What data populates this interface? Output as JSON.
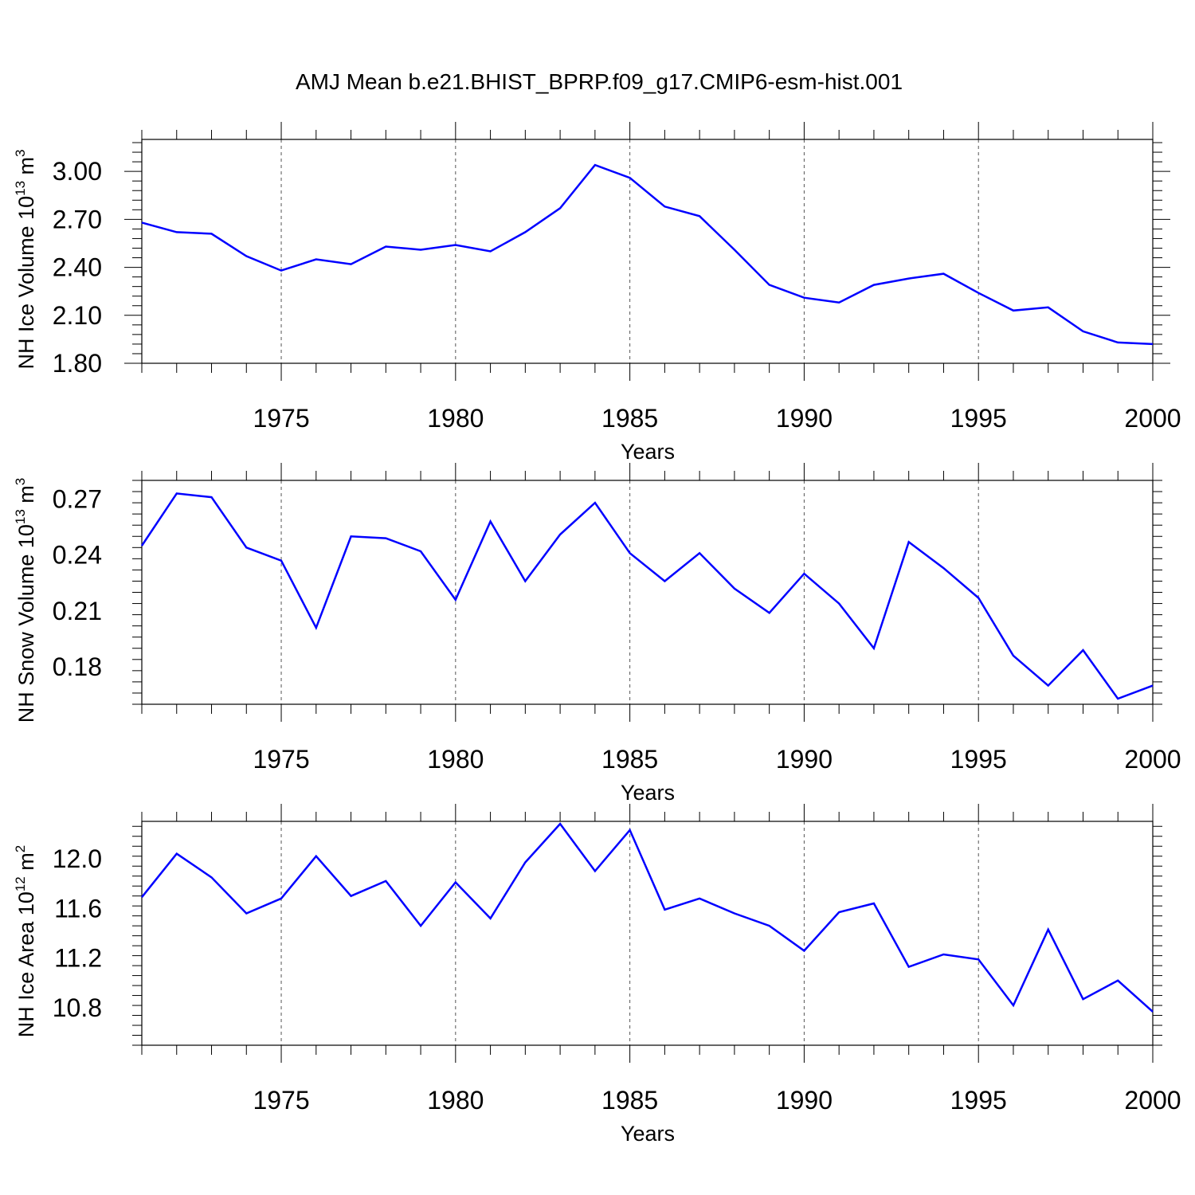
{
  "title": "AMJ Mean b.e21.BHIST_BPRP.f09_g17.CMIP6-esm-hist.001",
  "line_color": "#0000ff",
  "chart_data": [
    {
      "type": "line",
      "ylabel": {
        "base": "NH Ice Volume 10",
        "sup": "13",
        "unit": " m",
        "unit_sup": "3"
      },
      "xlabel": "Years",
      "xlim": [
        1971,
        2000
      ],
      "ylim": [
        1.8,
        3.2
      ],
      "x_ticks": [
        "1975",
        "1980",
        "1985",
        "1990",
        "1995",
        "2000"
      ],
      "y_ticks": [
        "1.80",
        "2.10",
        "2.40",
        "2.70",
        "3.00"
      ],
      "grid": "dashed vertical lines at major x ticks",
      "x": [
        1971,
        1972,
        1973,
        1974,
        1975,
        1976,
        1977,
        1978,
        1979,
        1980,
        1981,
        1982,
        1983,
        1984,
        1985,
        1986,
        1987,
        1988,
        1989,
        1990,
        1991,
        1992,
        1993,
        1994,
        1995,
        1996,
        1997,
        1998,
        1999,
        2000
      ],
      "values": [
        2.68,
        2.62,
        2.61,
        2.47,
        2.38,
        2.45,
        2.42,
        2.53,
        2.51,
        2.54,
        2.5,
        2.62,
        2.77,
        3.04,
        2.96,
        2.78,
        2.72,
        2.51,
        2.29,
        2.21,
        2.18,
        2.29,
        2.33,
        2.36,
        2.24,
        2.13,
        2.15,
        2.0,
        1.93,
        1.92
      ]
    },
    {
      "type": "line",
      "ylabel": {
        "base": "NH Snow Volume 10",
        "sup": "13",
        "unit": " m",
        "unit_sup": "3"
      },
      "xlabel": "Years",
      "xlim": [
        1971,
        2000
      ],
      "ylim": [
        0.16,
        0.28
      ],
      "x_ticks": [
        "1975",
        "1980",
        "1985",
        "1990",
        "1995",
        "2000"
      ],
      "y_ticks": [
        "0.18",
        "0.21",
        "0.24",
        "0.27"
      ],
      "grid": "dashed vertical lines at major x ticks",
      "x": [
        1971,
        1972,
        1973,
        1974,
        1975,
        1976,
        1977,
        1978,
        1979,
        1980,
        1981,
        1982,
        1983,
        1984,
        1985,
        1986,
        1987,
        1988,
        1989,
        1990,
        1991,
        1992,
        1993,
        1994,
        1995,
        1996,
        1997,
        1998,
        1999,
        2000
      ],
      "values": [
        0.245,
        0.273,
        0.271,
        0.244,
        0.237,
        0.201,
        0.25,
        0.249,
        0.242,
        0.216,
        0.258,
        0.226,
        0.251,
        0.268,
        0.241,
        0.226,
        0.241,
        0.222,
        0.209,
        0.23,
        0.214,
        0.19,
        0.247,
        0.233,
        0.217,
        0.186,
        0.17,
        0.189,
        0.163,
        0.17
      ]
    },
    {
      "type": "line",
      "ylabel": {
        "base": "NH Ice Area 10",
        "sup": "12",
        "unit": " m",
        "unit_sup": "2"
      },
      "xlabel": "Years",
      "xlim": [
        1971,
        2000
      ],
      "ylim": [
        10.5,
        12.3
      ],
      "x_ticks": [
        "1975",
        "1980",
        "1985",
        "1990",
        "1995",
        "2000"
      ],
      "y_ticks": [
        "10.8",
        "11.2",
        "11.6",
        "12.0"
      ],
      "grid": "dashed vertical lines at major x ticks",
      "x": [
        1971,
        1972,
        1973,
        1974,
        1975,
        1976,
        1977,
        1978,
        1979,
        1980,
        1981,
        1982,
        1983,
        1984,
        1985,
        1986,
        1987,
        1988,
        1989,
        1990,
        1991,
        1992,
        1993,
        1994,
        1995,
        1996,
        1997,
        1998,
        1999,
        2000
      ],
      "values": [
        11.69,
        12.04,
        11.85,
        11.56,
        11.68,
        12.02,
        11.7,
        11.82,
        11.46,
        11.81,
        11.52,
        11.97,
        12.28,
        11.9,
        12.23,
        11.59,
        11.68,
        11.56,
        11.46,
        11.26,
        11.57,
        11.64,
        11.13,
        11.23,
        11.19,
        10.82,
        11.43,
        10.87,
        11.02,
        10.77
      ]
    }
  ]
}
